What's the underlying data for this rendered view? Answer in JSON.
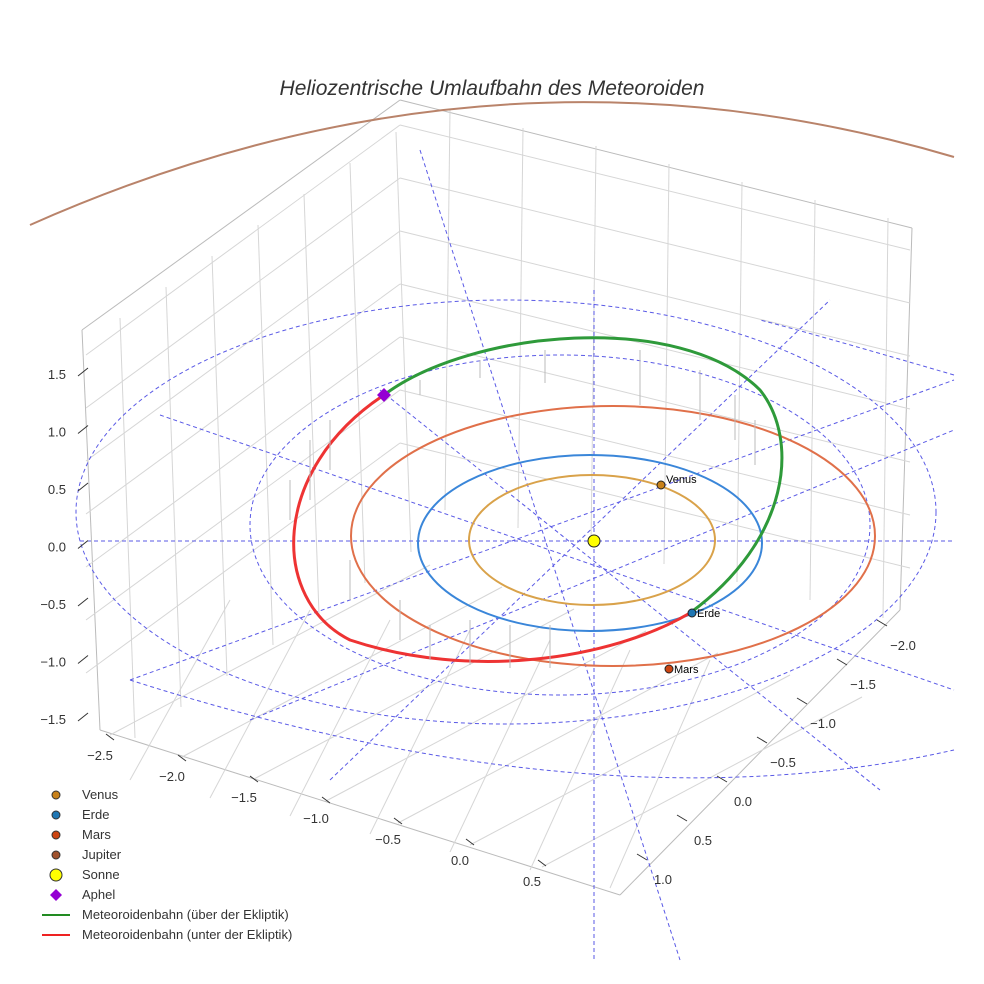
{
  "chart_data": {
    "type": "scatter3d",
    "title": "Heliozentrische Umlaufbahn des Meteoroiden",
    "z_ticks": [
      "1.5",
      "1.0",
      "0.5",
      "0.0",
      "−0.5",
      "−1.0",
      "−1.5"
    ],
    "x_ticks": [
      "−2.5",
      "−2.0",
      "−1.5",
      "−1.0",
      "−0.5",
      "0.0",
      "0.5"
    ],
    "y_ticks": [
      "−2.0",
      "−1.5",
      "−1.0",
      "−0.5",
      "0.0",
      "0.5",
      "1.0"
    ],
    "bodies": [
      {
        "name": "Venus",
        "color": "#c8811a",
        "label": "Venus"
      },
      {
        "name": "Erde",
        "color": "#1f77b4",
        "label": "Erde"
      },
      {
        "name": "Mars",
        "color": "#cc4411",
        "label": "Mars"
      },
      {
        "name": "Jupiter",
        "color": "#a0522d"
      },
      {
        "name": "Sonne",
        "color": "#ffff00"
      },
      {
        "name": "Aphel",
        "color": "#9400d3"
      }
    ],
    "orbit_colors": {
      "Venus": "#d9a24a",
      "Erde": "#3a86d9",
      "Mars": "#e0704a",
      "Jupiter": "#b9836a"
    },
    "legend": [
      {
        "label": "Venus",
        "type": "dot",
        "color": "#c8811a"
      },
      {
        "label": "Erde",
        "type": "dot",
        "color": "#1f77b4"
      },
      {
        "label": "Mars",
        "type": "dot",
        "color": "#cc4411"
      },
      {
        "label": "Jupiter",
        "type": "dot",
        "color": "#a0522d"
      },
      {
        "label": "Sonne",
        "type": "bigdot",
        "color": "#ffff00"
      },
      {
        "label": "Aphel",
        "type": "diamond",
        "color": "#9400d3"
      },
      {
        "label": "Meteoroidenbahn (über der Ekliptik)",
        "type": "line",
        "color": "#228b22"
      },
      {
        "label": "Meteoroidenbahn (unter der Ekliptik)",
        "type": "line",
        "color": "#ee2222"
      }
    ],
    "legend_position": "bottom-left"
  }
}
